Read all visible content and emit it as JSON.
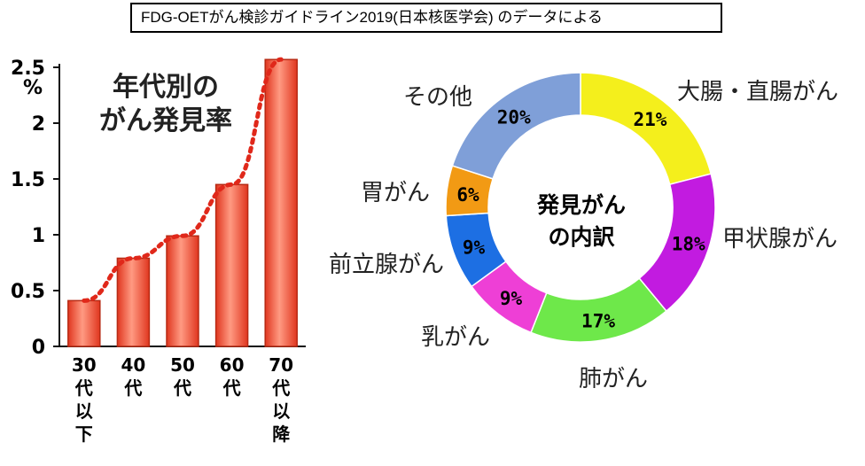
{
  "source_note": "FDG-OETがん検診ガイドライン2019(日本核医学会) のデータによる",
  "bar_title_line1": "年代別の",
  "bar_title_line2": "がん発見率",
  "y_unit": "%",
  "donut_center_line1": "発見がん",
  "donut_center_line2": "の内訳",
  "chart_data": [
    {
      "type": "bar",
      "title": "年代別のがん発見率",
      "ylabel": "%",
      "ylim": [
        0,
        2.5
      ],
      "yticks": [
        "0",
        "0.5",
        "1",
        "1.5",
        "2",
        "2.5"
      ],
      "categories": [
        "30代以下",
        "40代",
        "50代",
        "60代",
        "70代以降"
      ],
      "category_lines": [
        [
          "30",
          "代",
          "以",
          "下"
        ],
        [
          "40",
          "代"
        ],
        [
          "50",
          "代"
        ],
        [
          "60",
          "代"
        ],
        [
          "70",
          "代",
          "以",
          "降"
        ]
      ],
      "values": [
        0.41,
        0.79,
        0.99,
        1.45,
        2.57
      ],
      "trendline": "dotted",
      "grid": false
    },
    {
      "type": "pie",
      "variant": "donut",
      "title": "発見がんの内訳",
      "labels": [
        "大腸・直腸がん",
        "甲状腺がん",
        "肺がん",
        "乳がん",
        "前立腺がん",
        "胃がん",
        "その他"
      ],
      "values": [
        21,
        18,
        17,
        9,
        9,
        6,
        20
      ],
      "value_labels": [
        "21%",
        "18%",
        "17%",
        "9%",
        "9%",
        "6%",
        "20%"
      ],
      "colors": [
        "#f4ef1c",
        "#c21be0",
        "#6ee84a",
        "#ee3fd6",
        "#1d6fe3",
        "#f29a14",
        "#7f9fd8"
      ]
    }
  ]
}
